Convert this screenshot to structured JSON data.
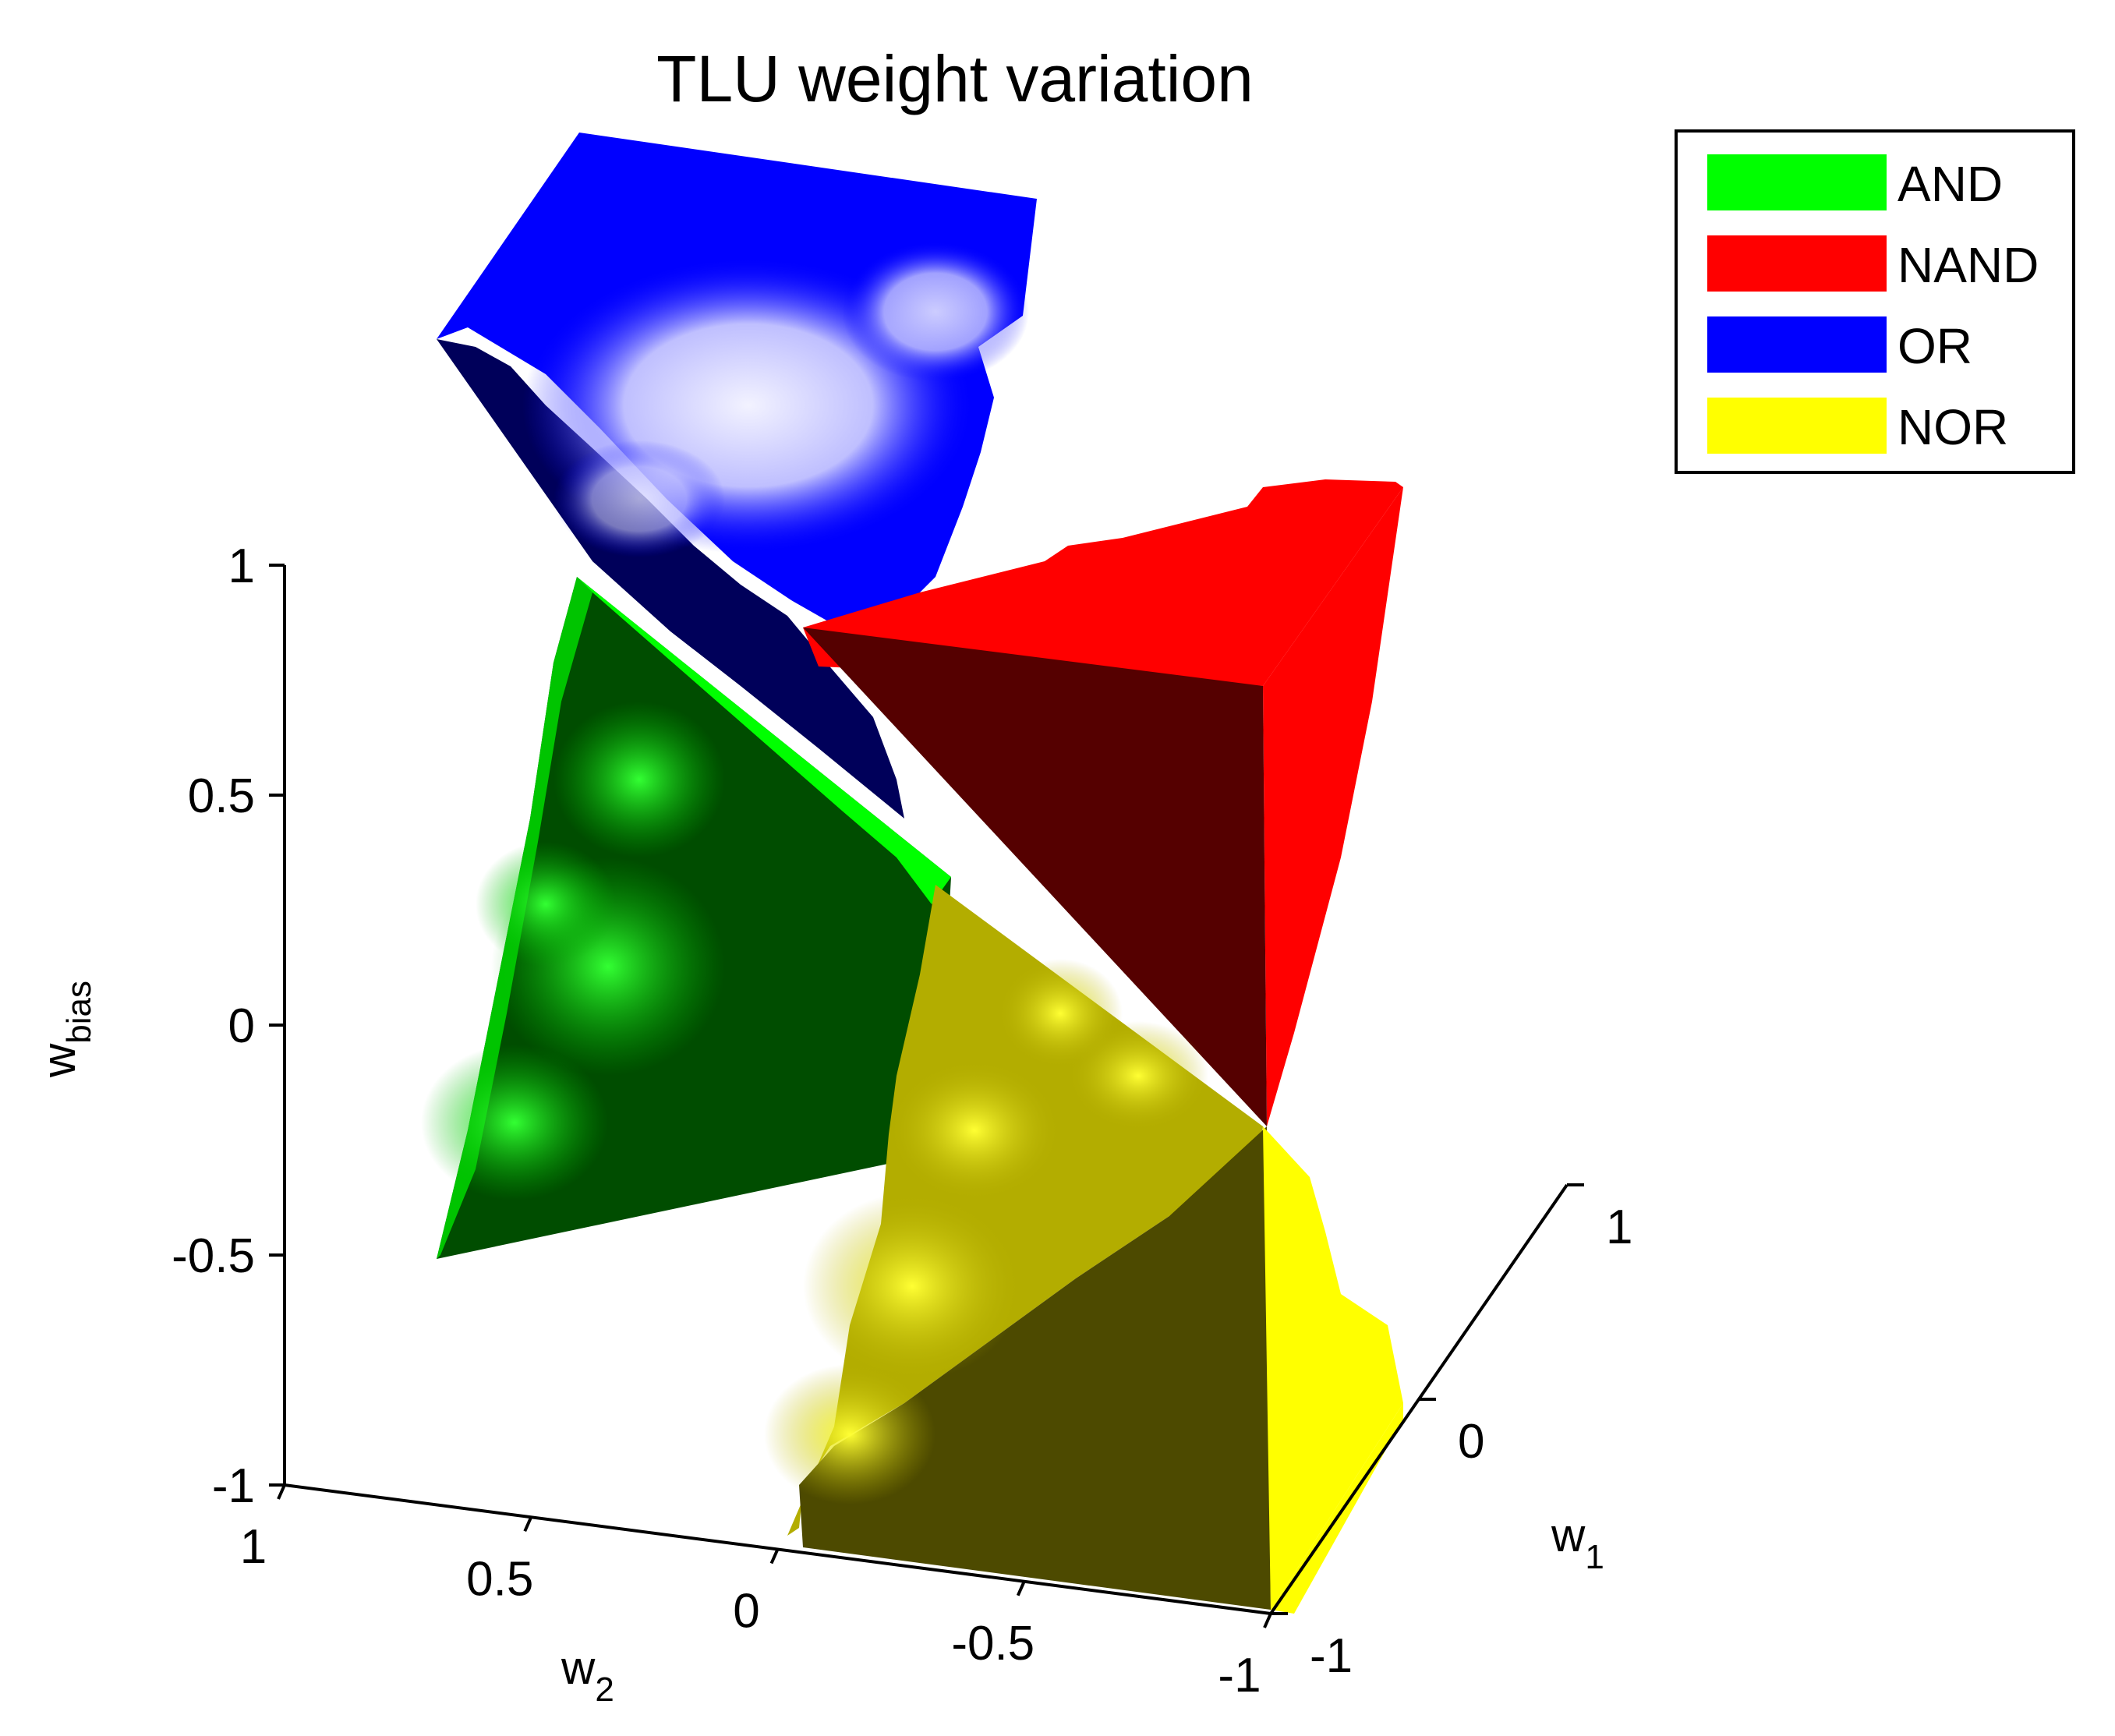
{
  "chart_data": {
    "type": "surface3d",
    "title": "TLU weight variation",
    "axes": {
      "x": {
        "label": "w",
        "label_sub": "1",
        "ticks": [
          "-1",
          "0",
          "1"
        ],
        "range": [
          -1,
          1
        ]
      },
      "y": {
        "label": "w",
        "label_sub": "2",
        "ticks": [
          "1",
          "0.5",
          "0",
          "-0.5",
          "-1"
        ],
        "range": [
          -1,
          1
        ]
      },
      "z": {
        "label": "w",
        "label_sub": "bias",
        "ticks": [
          "1",
          "0.5",
          "0",
          "-0.5",
          "-1"
        ],
        "range": [
          -1,
          1
        ]
      }
    },
    "legend": {
      "placement": "top-right",
      "entries": [
        {
          "label": "AND",
          "color": "#00ff00"
        },
        {
          "label": "NAND",
          "color": "#ff0000"
        },
        {
          "label": "OR",
          "color": "#0000ff"
        },
        {
          "label": "NOR",
          "color": "#ffff00"
        }
      ]
    },
    "series": [
      {
        "region": "AND",
        "color": "#00ff00",
        "shade": "#004d00"
      },
      {
        "region": "NAND",
        "color": "#ff0000",
        "shade": "#550000"
      },
      {
        "region": "OR",
        "color": "#0000ff",
        "shade": "#00005a"
      },
      {
        "region": "NOR",
        "color": "#ffff00",
        "shade": "#4d4a00"
      }
    ],
    "grid": false
  }
}
